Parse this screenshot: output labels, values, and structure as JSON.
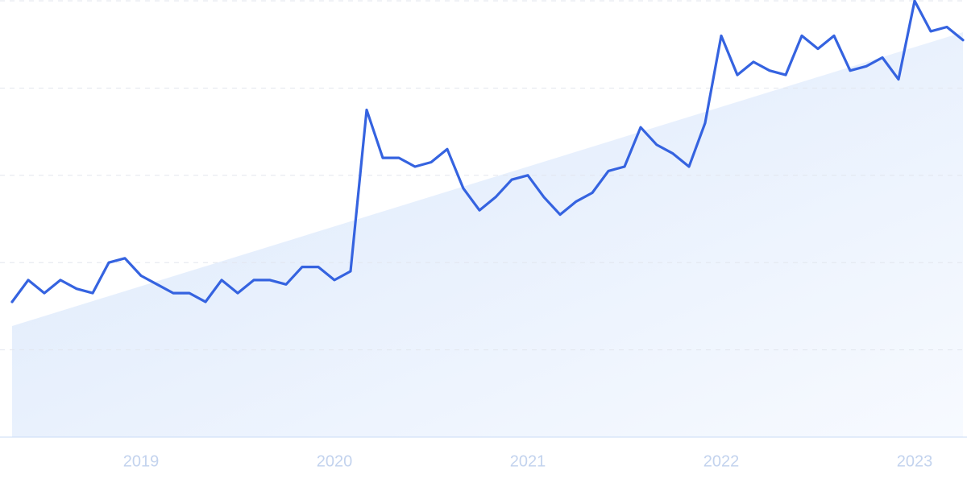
{
  "chart_data": {
    "type": "line",
    "categories": [
      null,
      null,
      null,
      null,
      null,
      null,
      null,
      null,
      "2019",
      null,
      null,
      null,
      null,
      null,
      null,
      null,
      null,
      null,
      null,
      null,
      "2020",
      null,
      null,
      null,
      null,
      null,
      null,
      null,
      null,
      null,
      null,
      null,
      "2021",
      null,
      null,
      null,
      null,
      null,
      null,
      null,
      null,
      null,
      null,
      null,
      "2022",
      null,
      null,
      null,
      null,
      null,
      null,
      null,
      null,
      null,
      null,
      null,
      "2023",
      null,
      null,
      null
    ],
    "values": [
      31,
      36,
      33,
      36,
      34,
      33,
      40,
      41,
      37,
      35,
      33,
      33,
      31,
      36,
      33,
      36,
      36,
      35,
      39,
      39,
      36,
      38,
      75,
      64,
      64,
      62,
      63,
      66,
      57,
      52,
      55,
      59,
      60,
      55,
      51,
      54,
      56,
      61,
      62,
      71,
      67,
      65,
      62,
      72,
      92,
      83,
      86,
      84,
      83,
      92,
      89,
      92,
      84,
      85,
      87,
      82,
      100,
      93,
      94,
      91
    ],
    "color": "#3563e0",
    "ylim": [
      0,
      100
    ],
    "yticks": [
      0,
      20,
      40,
      60,
      80,
      100
    ],
    "grid": true
  }
}
